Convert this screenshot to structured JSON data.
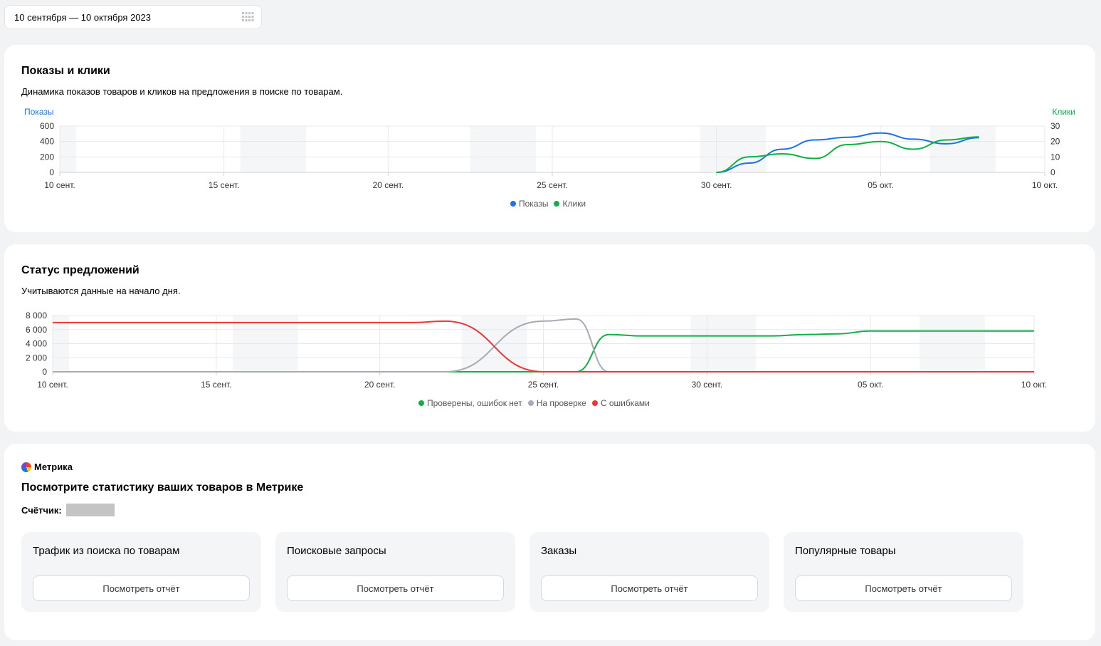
{
  "date_range": "10 сентября — 10 октября 2023",
  "shows_card": {
    "title": "Показы и клики",
    "subtitle": "Динамика показов товаров и кликов на предложения в поиске по товарам.",
    "left_axis_label": "Показы",
    "right_axis_label": "Клики",
    "legend": [
      {
        "name": "Показы",
        "color": "#1a73e8"
      },
      {
        "name": "Клики",
        "color": "#0fb046"
      }
    ]
  },
  "status_card": {
    "title": "Статус предложений",
    "subtitle": "Учитываются данные на начало дня.",
    "legend": [
      {
        "name": "Проверены, ошибок нет",
        "color": "#0fb046"
      },
      {
        "name": "На проверке",
        "color": "#a7aab8"
      },
      {
        "name": "С ошибками",
        "color": "#f03535"
      }
    ]
  },
  "chart_data": [
    {
      "type": "line",
      "x_ticks": [
        "10 сент.",
        "15 сент.",
        "20 сент.",
        "25 сент.",
        "30 сент.",
        "05 окт.",
        "10 окт."
      ],
      "y_left_ticks": [
        "600",
        "400",
        "200",
        "0"
      ],
      "y_right_ticks": [
        "30",
        "20",
        "10",
        "0"
      ],
      "ylim_left": [
        0,
        600
      ],
      "ylim_right": [
        0,
        30
      ],
      "shaded_weekends": [
        [
          "2023-09-10",
          "2023-09-10"
        ],
        [
          "2023-09-16",
          "2023-09-17"
        ],
        [
          "2023-09-23",
          "2023-09-24"
        ],
        [
          "2023-09-30",
          "2023-10-01"
        ],
        [
          "2023-10-07",
          "2023-10-08"
        ]
      ],
      "series": [
        {
          "name": "Показы",
          "axis": "left",
          "color": "#1a73e8",
          "x": [
            "2023-09-30",
            "2023-10-01",
            "2023-10-02",
            "2023-10-03",
            "2023-10-04",
            "2023-10-05",
            "2023-10-06",
            "2023-10-07",
            "2023-10-08"
          ],
          "values": [
            0,
            120,
            300,
            420,
            455,
            510,
            430,
            370,
            450
          ]
        },
        {
          "name": "Клики",
          "axis": "right",
          "color": "#0fb046",
          "x": [
            "2023-09-30",
            "2023-10-01",
            "2023-10-02",
            "2023-10-03",
            "2023-10-04",
            "2023-10-05",
            "2023-10-06",
            "2023-10-07",
            "2023-10-08"
          ],
          "values": [
            0,
            10,
            12,
            9,
            18,
            20,
            15,
            21,
            23
          ]
        }
      ]
    },
    {
      "type": "line",
      "x_ticks": [
        "10 сент.",
        "15 сент.",
        "20 сент.",
        "25 сент.",
        "30 сент.",
        "05 окт.",
        "10 окт."
      ],
      "y_ticks": [
        "8 000",
        "6 000",
        "4 000",
        "2 000",
        "0"
      ],
      "ylim": [
        0,
        8000
      ],
      "shaded_weekends": [
        [
          "2023-09-10",
          "2023-09-10"
        ],
        [
          "2023-09-16",
          "2023-09-17"
        ],
        [
          "2023-09-23",
          "2023-09-24"
        ],
        [
          "2023-09-30",
          "2023-10-01"
        ],
        [
          "2023-10-07",
          "2023-10-08"
        ]
      ],
      "series": [
        {
          "name": "Проверены, ошибок нет",
          "color": "#0fb046",
          "x": [
            "2023-09-10",
            "2023-09-26",
            "2023-09-27",
            "2023-09-28",
            "2023-10-02",
            "2023-10-03",
            "2023-10-04",
            "2023-10-05",
            "2023-10-10"
          ],
          "values": [
            0,
            0,
            5300,
            5100,
            5100,
            5300,
            5400,
            5800,
            5800
          ]
        },
        {
          "name": "На проверке",
          "color": "#a7aab8",
          "x": [
            "2023-09-10",
            "2023-09-22",
            "2023-09-25",
            "2023-09-26",
            "2023-09-27",
            "2023-10-10"
          ],
          "values": [
            0,
            0,
            7200,
            7500,
            0,
            0
          ]
        },
        {
          "name": "С ошибками",
          "color": "#f03535",
          "x": [
            "2023-09-10",
            "2023-09-21",
            "2023-09-22",
            "2023-09-25",
            "2023-10-10"
          ],
          "values": [
            7000,
            7000,
            7200,
            0,
            0
          ]
        }
      ]
    }
  ],
  "metrika": {
    "brand": "Метрика",
    "title": "Посмотрите статистику ваших товаров в Метрике",
    "counter_label": "Счётчик:",
    "reports": [
      {
        "title": "Трафик из поиска по товарам",
        "button": "Посмотреть отчёт"
      },
      {
        "title": "Поисковые запросы",
        "button": "Посмотреть отчёт"
      },
      {
        "title": "Заказы",
        "button": "Посмотреть отчёт"
      },
      {
        "title": "Популярные товары",
        "button": "Посмотреть отчёт"
      }
    ]
  }
}
